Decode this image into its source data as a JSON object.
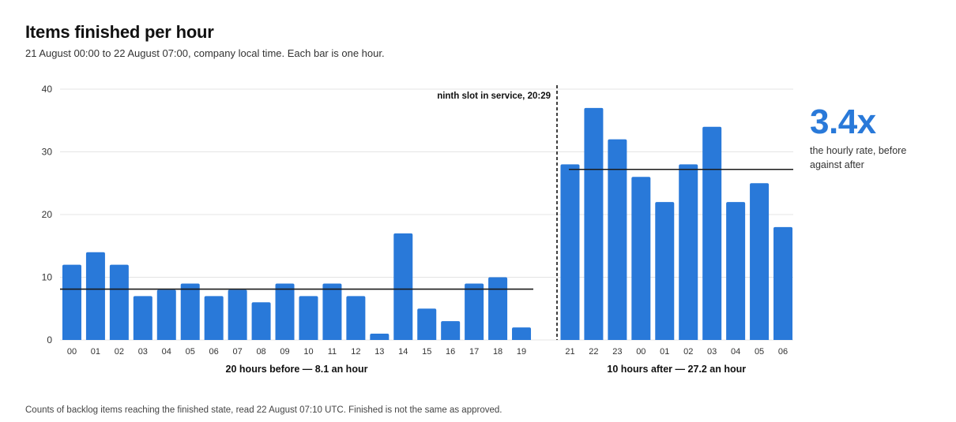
{
  "header": {
    "title": "Items finished per hour",
    "subtitle": "21 August 00:00 to 22 August 07:00, company local time. Each bar is one hour."
  },
  "footnote": "Counts of backlog items reaching the finished state, read 22 August 07:10 UTC. Finished is not the same as approved.",
  "callout": {
    "value": "3.4x",
    "description": "the hourly rate, before against after"
  },
  "colors": {
    "bar": "#2979d9",
    "average_line": "#1a1a1a",
    "callout": "#2979d9"
  },
  "chart_data": {
    "type": "bar",
    "title": "Items finished per hour",
    "ylim": [
      0,
      40
    ],
    "yticks": [
      0,
      10,
      20,
      30,
      40
    ],
    "grid": true,
    "annotation": {
      "text": "ninth slot in service, 20:29",
      "between": [
        "19",
        "21"
      ]
    },
    "groups": [
      {
        "label": "20 hours before — 8.1 an hour",
        "average": 8.1,
        "categories": [
          "00",
          "01",
          "02",
          "03",
          "04",
          "05",
          "06",
          "07",
          "08",
          "09",
          "10",
          "11",
          "12",
          "13",
          "14",
          "15",
          "16",
          "17",
          "18",
          "19"
        ],
        "values": [
          12,
          14,
          12,
          7,
          8,
          9,
          7,
          8,
          6,
          9,
          7,
          9,
          7,
          1,
          17,
          5,
          3,
          9,
          10,
          2
        ]
      },
      {
        "label": "10 hours after — 27.2 an hour",
        "average": 27.2,
        "categories": [
          "21",
          "22",
          "23",
          "00",
          "01",
          "02",
          "03",
          "04",
          "05",
          "06"
        ],
        "values": [
          28,
          37,
          32,
          26,
          22,
          28,
          34,
          22,
          25,
          18
        ]
      }
    ]
  }
}
